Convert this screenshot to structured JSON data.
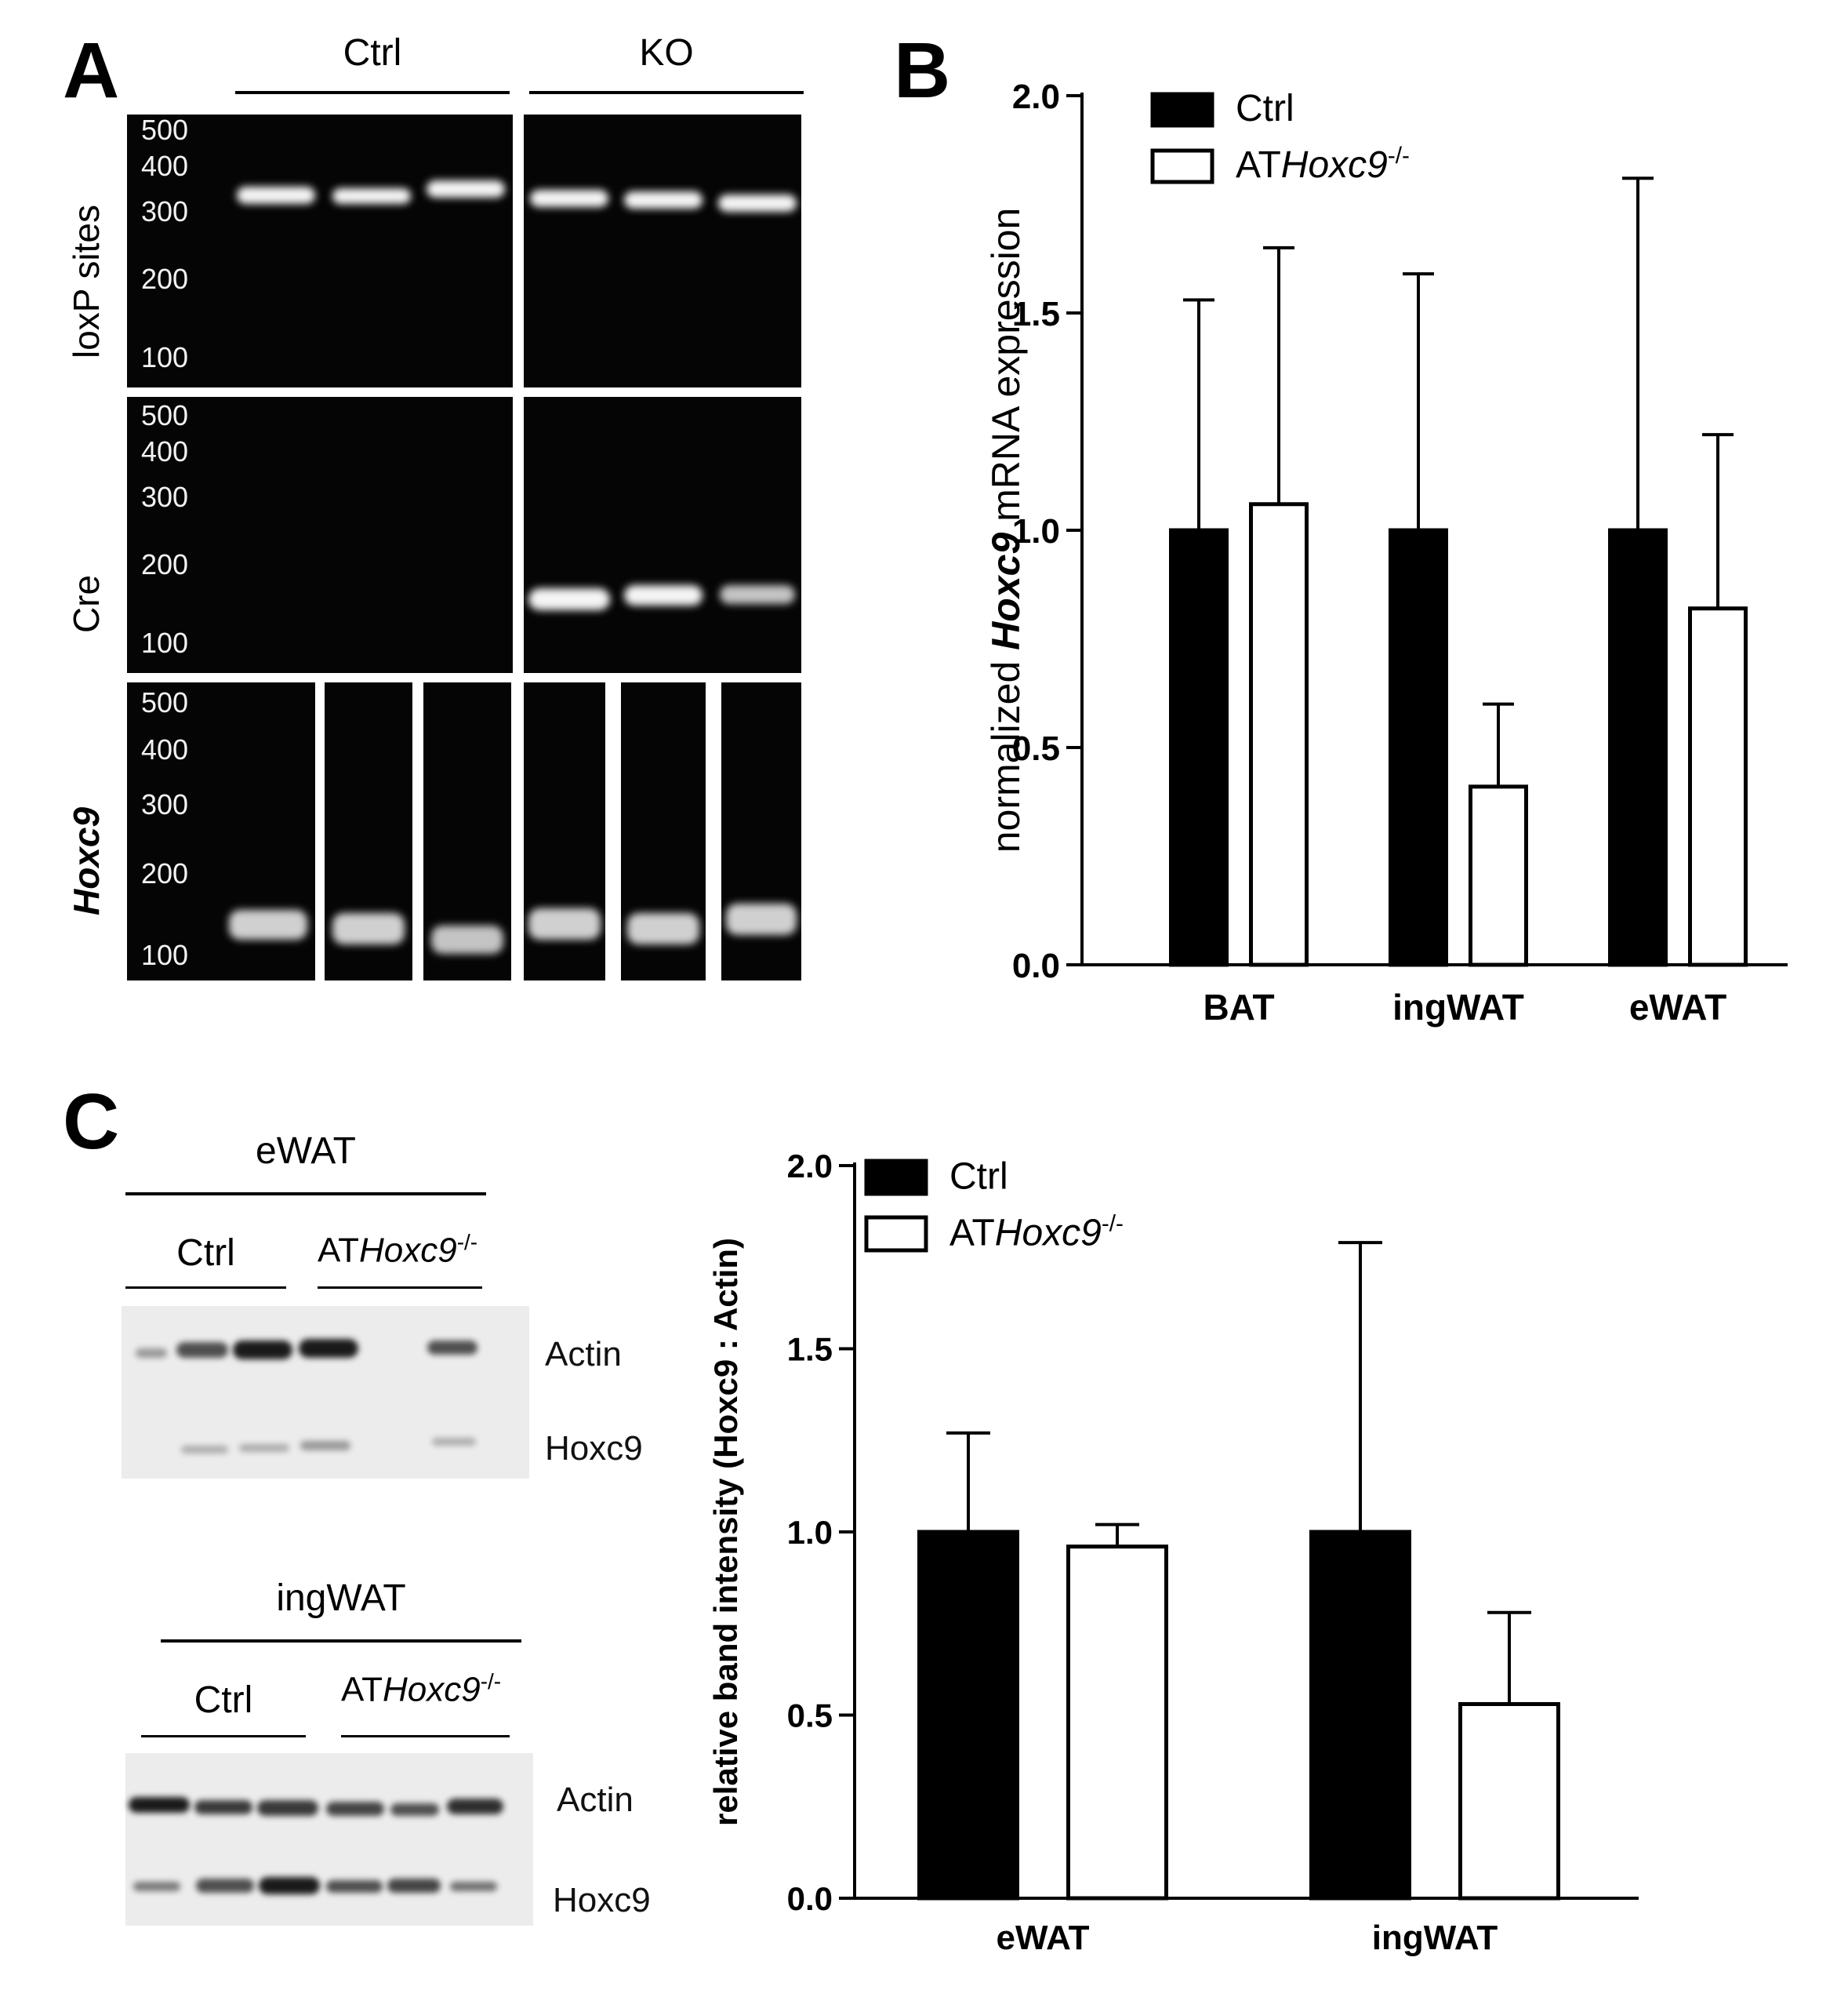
{
  "panel_labels": {
    "a": "A",
    "b": "B",
    "c": "C"
  },
  "panel_a": {
    "group_ctrl": "Ctrl",
    "group_ko": "KO",
    "rows": [
      {
        "label": "loxP sites",
        "italic": false,
        "ladder": [
          "500",
          "400",
          "300",
          "200",
          "100"
        ]
      },
      {
        "label": "Cre",
        "italic": false,
        "ladder": [
          "500",
          "400",
          "300",
          "200",
          "100"
        ]
      },
      {
        "label": "Hoxc9",
        "italic": true,
        "ladder": [
          "500",
          "400",
          "300",
          "200",
          "100"
        ]
      }
    ]
  },
  "panel_c_blots": {
    "ewat": {
      "title": "eWAT",
      "ctrl": "Ctrl",
      "ko_prefix": "AT",
      "ko_gene": "Hoxc9",
      "ko_sup": "-/-",
      "band1": "Actin",
      "band2": "Hoxc9"
    },
    "ingwat": {
      "title": "ingWAT",
      "ctrl": "Ctrl",
      "ko_prefix": "AT",
      "ko_gene": "Hoxc9",
      "ko_sup": "-/-",
      "band1": "Actin",
      "band2": "Hoxc9"
    }
  },
  "chart_data": [
    {
      "type": "bar",
      "panel": "B",
      "ylabel_parts": [
        "normalized ",
        "Hoxc9",
        " mRNA expression"
      ],
      "xlabel": "",
      "categories": [
        "BAT",
        "ingWAT",
        "eWAT"
      ],
      "ylim": [
        0,
        2.0
      ],
      "yticks": [
        "0.0",
        "0.5",
        "1.0",
        "1.5",
        "2.0"
      ],
      "legend_position": "top-left",
      "series": [
        {
          "name": "Ctrl",
          "fill": "#000000",
          "values": [
            1.0,
            1.0,
            1.0
          ],
          "errors": [
            0.53,
            0.59,
            0.81
          ]
        },
        {
          "name": "ATHoxc9-/-",
          "name_prefix": "AT",
          "name_gene": "Hoxc9",
          "name_sup": "-/-",
          "fill": "#ffffff",
          "values": [
            1.06,
            0.41,
            0.82
          ],
          "errors": [
            0.59,
            0.19,
            0.4
          ]
        }
      ]
    },
    {
      "type": "bar",
      "panel": "C",
      "ylabel": "relative band intensity (Hoxc9 : Actin)",
      "xlabel": "",
      "categories": [
        "eWAT",
        "ingWAT"
      ],
      "ylim": [
        0,
        2.0
      ],
      "yticks": [
        "0.0",
        "0.5",
        "1.0",
        "1.5",
        "2.0"
      ],
      "legend_position": "top-left",
      "series": [
        {
          "name": "Ctrl",
          "fill": "#000000",
          "values": [
            1.0,
            1.0
          ],
          "errors": [
            0.27,
            0.79
          ]
        },
        {
          "name": "ATHoxc9-/-",
          "name_prefix": "AT",
          "name_gene": "Hoxc9",
          "name_sup": "-/-",
          "fill": "#ffffff",
          "values": [
            0.96,
            0.53
          ],
          "errors": [
            0.06,
            0.25
          ]
        }
      ]
    }
  ]
}
